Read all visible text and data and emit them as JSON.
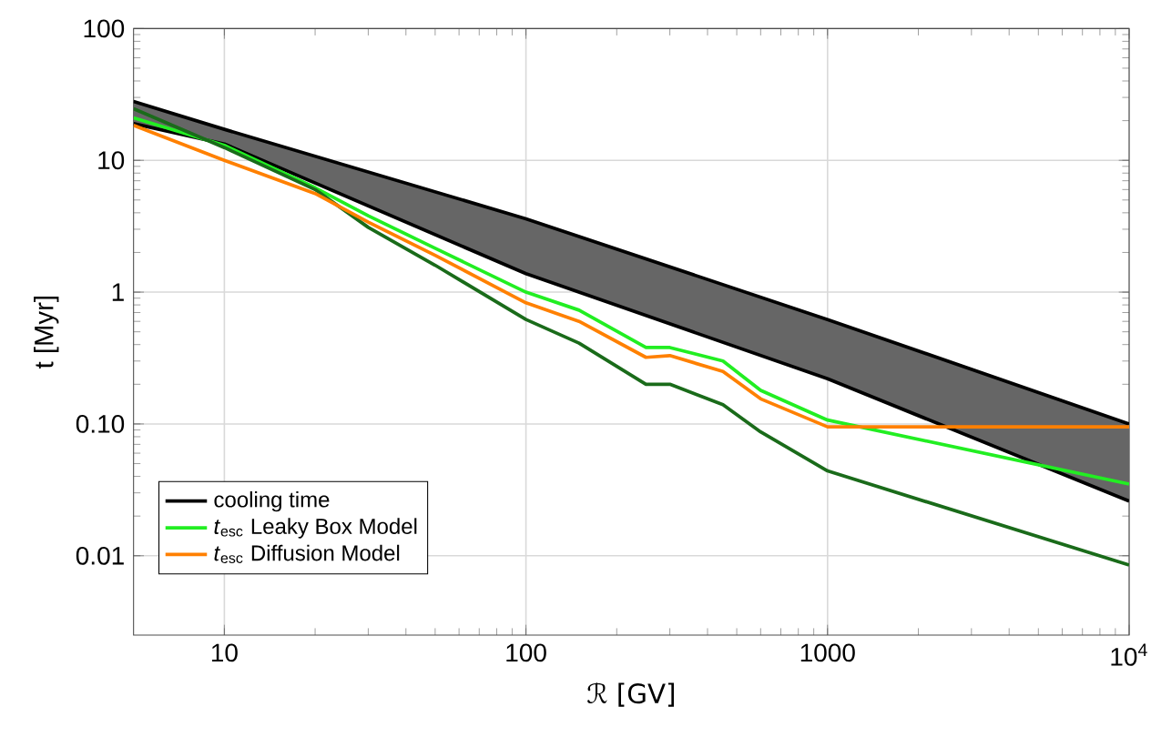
{
  "chart_data": {
    "type": "line",
    "xlabel": "ℛ [GV]",
    "ylabel": "t [Myr]",
    "log": "xy",
    "grid": true,
    "legend": "bottom left",
    "xlim": [
      5,
      10000
    ],
    "ylim": [
      0.0025,
      100
    ],
    "xticks": [
      10,
      100,
      1000,
      {
        "value": 10000,
        "label": "10$^{4}$"
      }
    ],
    "yticks": [
      {
        "value": 0.01,
        "label": "0.01"
      },
      {
        "value": 0.1,
        "label": "0.10"
      },
      1,
      10,
      100
    ],
    "series": [
      {
        "name": "cooling time",
        "color": "#000000",
        "x": [
          5,
          10,
          100,
          1000,
          10000
        ],
        "values": [
          28,
          17.2,
          3.6,
          0.62,
          0.1
        ],
        "upper": [
          28,
          17.2,
          3.6,
          0.62,
          0.1
        ],
        "lower": [
          19,
          13.3,
          1.38,
          0.22,
          0.026
        ]
      },
      {
        "color": "#000000",
        "x": [
          5,
          10,
          100,
          1000,
          10000
        ],
        "values": [
          19,
          13.3,
          1.38,
          0.22,
          0.026
        ]
      },
      {
        "name": "*t*$_{esc}$ Leaky Box Model",
        "color": "#22ee22",
        "x": [
          5,
          10,
          20,
          30,
          50,
          100,
          150,
          250,
          300,
          450,
          600,
          1000,
          10000
        ],
        "values": [
          21,
          13,
          6.2,
          3.8,
          2.15,
          1.0,
          0.73,
          0.38,
          0.38,
          0.3,
          0.18,
          0.107,
          0.035
        ]
      },
      {
        "color": "#1a6b1a",
        "x": [
          5,
          10,
          20,
          30,
          50,
          100,
          150,
          250,
          300,
          450,
          600,
          1000,
          10000
        ],
        "values": [
          24.6,
          12.5,
          6.0,
          3.1,
          1.6,
          0.62,
          0.41,
          0.2,
          0.2,
          0.14,
          0.087,
          0.044,
          0.0085
        ]
      },
      {
        "name": "*t*$_{esc}$ Diffusion Model",
        "color": "#ff8000",
        "x": [
          5,
          10,
          20,
          30,
          50,
          100,
          150,
          250,
          300,
          450,
          600,
          1000,
          10000
        ],
        "values": [
          18.4,
          10,
          5.6,
          3.4,
          1.9,
          0.83,
          0.6,
          0.32,
          0.33,
          0.25,
          0.155,
          0.095,
          0.095
        ]
      }
    ]
  }
}
